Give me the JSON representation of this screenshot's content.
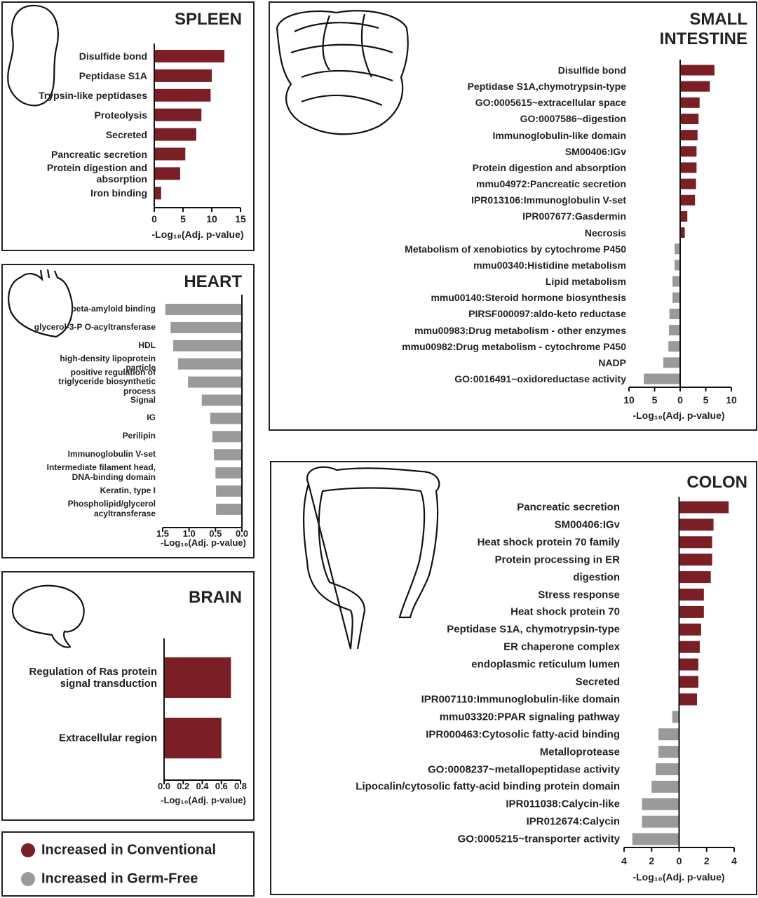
{
  "chart_data": [
    {
      "type": "hbar",
      "title": "SPLEEN",
      "categories": [
        "Disulfide bond",
        "Peptidase S1A",
        "Trypsin-like peptidases",
        "Proteolysis",
        "Secreted",
        "Pancreatic secretion",
        "Protein digestion and absorption",
        "Iron binding"
      ],
      "values": [
        12.2,
        10,
        9.8,
        8.2,
        7.3,
        5.4,
        4.5,
        1.2
      ],
      "color": "#7a1f26",
      "xlim": [
        0,
        15
      ],
      "xticks": [
        0,
        5,
        10,
        15
      ],
      "xlabel": "-Log₁₀(Adj. p-value)"
    },
    {
      "type": "hbar",
      "title": "HEART",
      "categories": [
        "beta-amyloid binding",
        "glycerol-3-P O-acyltransferase",
        "HDL",
        "high-density lipoprotein particle",
        "positive regulation of triglyceride biosynthetic process",
        "Signal",
        "IG",
        "Perilipin",
        "Immunoglobulin V-set",
        "Intermediate filament head, DNA-binding domain",
        "Keratin, type I",
        "Phospholipid/glycerol acyltransferase"
      ],
      "values": [
        1.45,
        1.35,
        1.3,
        1.21,
        1.02,
        0.76,
        0.6,
        0.56,
        0.53,
        0.5,
        0.49,
        0.49
      ],
      "color": "#9a9a9a",
      "xlim": [
        1.5,
        0
      ],
      "xticks": [
        1.5,
        {
          "value": 1,
          "label": "1.0"
        },
        0.5,
        {
          "value": 0,
          "label": "0.0"
        }
      ],
      "xlabel": "-Log₁₀(Adj. p-value)"
    },
    {
      "type": "hbar",
      "title": "BRAIN",
      "categories": [
        "Regulation of Ras protein signal transduction",
        "Extracellular region"
      ],
      "values": [
        0.7,
        0.6
      ],
      "color": "#7a1f26",
      "xlim": [
        0,
        0.8
      ],
      "xticks": [
        {
          "value": 0,
          "label": "0.0"
        },
        0.2,
        0.4,
        0.6,
        0.8
      ],
      "xlabel": "-Log₁₀(Adj. p-value)"
    },
    {
      "type": "hbar",
      "title": "SMALL INTESTINE",
      "categories": [
        "Disulfide bond",
        "Peptidase S1A,chymotrypsin-type",
        "GO:0005615~extracellular space",
        "GO:0007586~digestion",
        "Immunoglobulin-like domain",
        "SM00406:IGv",
        "Protein digestion and absorption",
        "mmu04972:Pancreatic secretion",
        "IPR013106:Immunoglobulin V-set",
        "IPR007677:Gasdermin",
        "Necrosis",
        "Metabolism of xenobiotics by cytochrome P450",
        "mmu00340:Histidine metabolism",
        "Lipid metabolism",
        "mmu00140:Steroid hormone biosynthesis",
        "PIRSF000097:aldo-keto reductase",
        "mmu00983:Drug metabolism - other enzymes",
        "mmu00982:Drug metabolism - cytochrome P450",
        "NADP",
        "GO:0016491~oxidoreductase activity"
      ],
      "values": [
        6.7,
        5.8,
        3.8,
        3.6,
        3.4,
        3.2,
        3.2,
        3.1,
        2.9,
        1.4,
        0.9,
        -1.1,
        -1.1,
        -1.5,
        -1.5,
        -2.1,
        -2.2,
        -2.3,
        -3.3,
        -7.1
      ],
      "color": "#7a1f26",
      "negative_color": "#9a9a9a",
      "xlim": [
        -10,
        10
      ],
      "xticks": [
        {
          "value": -10,
          "label": "10"
        },
        {
          "value": -5,
          "label": "5"
        },
        0,
        5,
        10
      ],
      "xlabel": "-Log₁₀(Adj. p-value)"
    },
    {
      "type": "hbar",
      "title": "COLON",
      "categories": [
        "Pancreatic secretion",
        "SM00406:IGv",
        "Heat shock protein 70 family",
        "Protein processing in ER",
        "digestion",
        "Stress response",
        "Heat shock protein 70",
        "Peptidase S1A, chymotrypsin-type",
        "ER chaperone complex",
        "endoplasmic reticulum lumen",
        "Secreted",
        "IPR007110:Immunoglobulin-like domain",
        "mmu03320:PPAR signaling pathway",
        "IPR000463:Cytosolic fatty-acid binding",
        "Metalloprotease",
        "GO:0008237~metallopeptidase activity",
        "Lipocalin/cytosolic fatty-acid binding protein domain",
        "IPR011038:Calycin-like",
        "IPR012674:Calycin",
        "GO:0005215~transporter activity"
      ],
      "values": [
        3.6,
        2.5,
        2.4,
        2.4,
        2.3,
        1.8,
        1.8,
        1.6,
        1.5,
        1.4,
        1.4,
        1.3,
        -0.5,
        -1.5,
        -1.5,
        -1.7,
        -2.0,
        -2.7,
        -2.7,
        -3.4
      ],
      "color": "#7a1f26",
      "negative_color": "#9a9a9a",
      "xlim": [
        -4,
        4
      ],
      "xticks": [
        {
          "value": -4,
          "label": "4"
        },
        {
          "value": -2,
          "label": "2"
        },
        0,
        2,
        4
      ],
      "xlabel": "-Log₁₀(Adj. p-value)"
    }
  ],
  "legend": {
    "items": [
      {
        "label": "Increased in Conventional",
        "color": "#7a1f26"
      },
      {
        "label": "Increased in Germ-Free",
        "color": "#9a9a9a"
      }
    ]
  }
}
